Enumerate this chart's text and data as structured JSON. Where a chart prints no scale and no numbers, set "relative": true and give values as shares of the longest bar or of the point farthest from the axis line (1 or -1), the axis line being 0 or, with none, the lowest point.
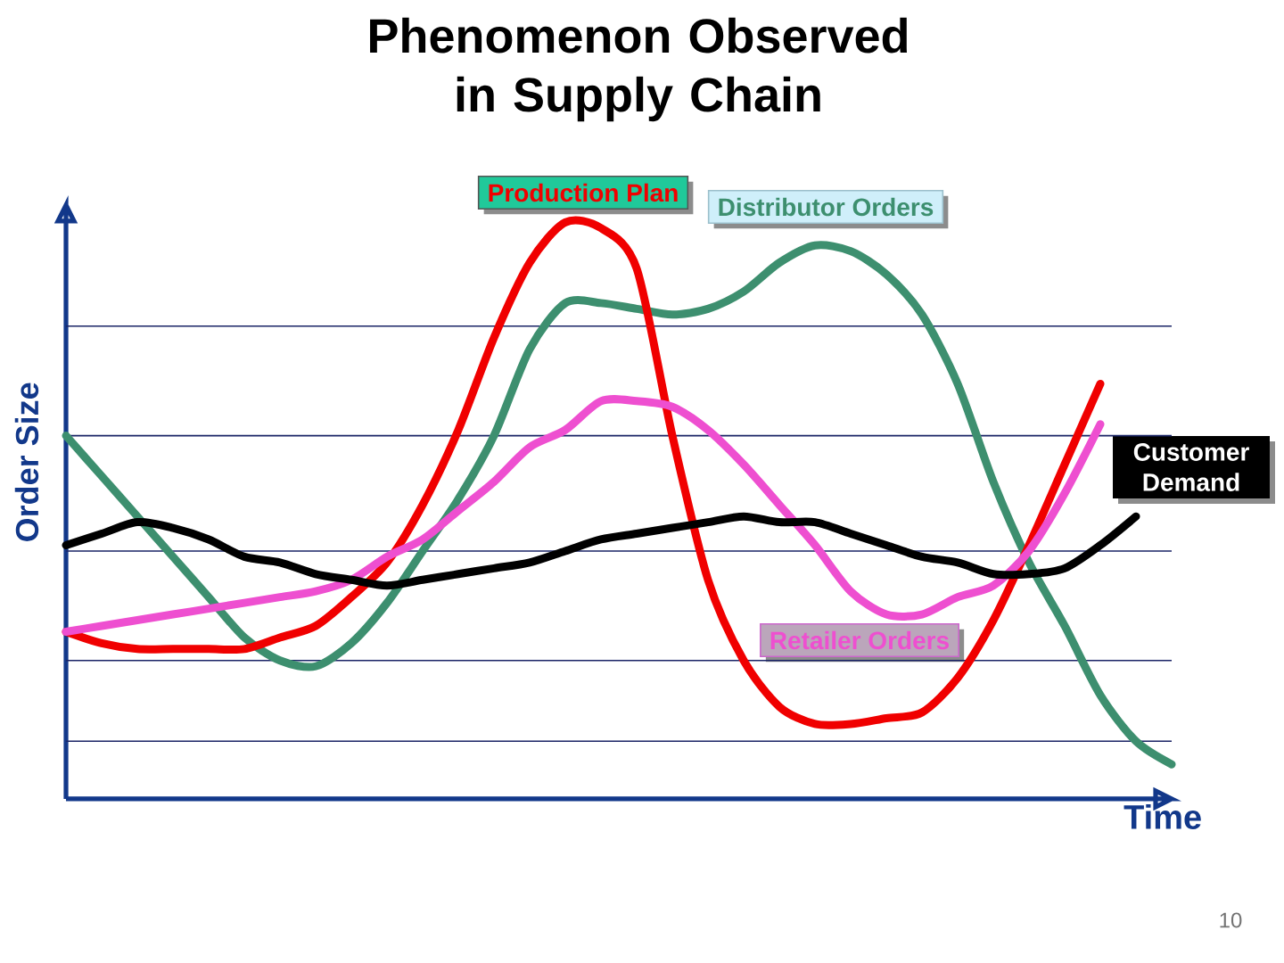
{
  "chart_data": {
    "type": "line",
    "title": "Phenomenon Observed in Supply Chain",
    "xlabel": "Time",
    "ylabel": "Order Size",
    "relative": true,
    "categories": [
      null,
      null,
      null,
      null,
      null,
      null,
      null,
      null,
      null,
      null,
      null,
      null,
      null,
      null,
      null,
      null,
      null,
      null,
      null,
      null,
      null,
      null,
      null,
      null,
      null,
      null,
      null,
      null,
      null,
      null,
      null,
      null
    ],
    "series": [
      {
        "name": "Distributor Orders",
        "color": "#3d8f6f",
        "values": [
          0.63,
          0.56,
          0.49,
          0.42,
          0.35,
          0.28,
          0.24,
          0.23,
          0.27,
          0.34,
          0.43,
          0.52,
          0.63,
          0.78,
          0.86,
          0.86,
          0.85,
          0.84,
          0.85,
          0.88,
          0.93,
          0.96,
          0.95,
          0.91,
          0.84,
          0.72,
          0.55,
          0.41,
          0.3,
          0.18,
          0.1,
          0.06
        ]
      },
      {
        "name": "Production Plan",
        "color": "#f00000",
        "values": [
          0.29,
          0.27,
          0.26,
          0.26,
          0.26,
          0.26,
          0.28,
          0.3,
          0.35,
          0.41,
          0.51,
          0.64,
          0.8,
          0.93,
          1,
          0.99,
          0.92,
          0.63,
          0.38,
          0.24,
          0.16,
          0.13,
          0.13,
          0.14,
          0.15,
          0.21,
          0.31,
          0.44,
          0.58,
          0.72,
          null,
          null
        ]
      },
      {
        "name": "Retailer Orders",
        "color": "#ee4fd0",
        "values": [
          0.29,
          0.3,
          0.31,
          0.32,
          0.33,
          0.34,
          0.35,
          0.36,
          0.38,
          0.42,
          0.45,
          0.5,
          0.55,
          0.61,
          0.64,
          0.69,
          0.69,
          0.68,
          0.64,
          0.58,
          0.51,
          0.44,
          0.36,
          0.32,
          0.32,
          0.35,
          0.37,
          0.43,
          0.53,
          0.65,
          null,
          null
        ]
      },
      {
        "name": "Customer Demand",
        "color": "#000000",
        "values": [
          0.44,
          0.46,
          0.48,
          0.47,
          0.45,
          0.42,
          0.41,
          0.39,
          0.38,
          0.37,
          0.38,
          0.39,
          0.4,
          0.41,
          0.43,
          0.45,
          0.46,
          0.47,
          0.48,
          0.49,
          0.48,
          0.48,
          0.46,
          0.44,
          0.42,
          0.41,
          0.39,
          0.39,
          0.4,
          0.44,
          0.49,
          null
        ]
      }
    ],
    "ref_lines": [
      {
        "axis": "y",
        "value": 0.1,
        "color": "#1a2466"
      },
      {
        "axis": "y",
        "value": 0.24,
        "color": "#1a2466"
      },
      {
        "axis": "y",
        "value": 0.43,
        "color": "#1a2466"
      },
      {
        "axis": "y",
        "value": 0.63,
        "color": "#1a2466"
      },
      {
        "axis": "y",
        "value": 0.82,
        "color": "#1a2466"
      }
    ],
    "annotations": [
      "10"
    ]
  }
}
